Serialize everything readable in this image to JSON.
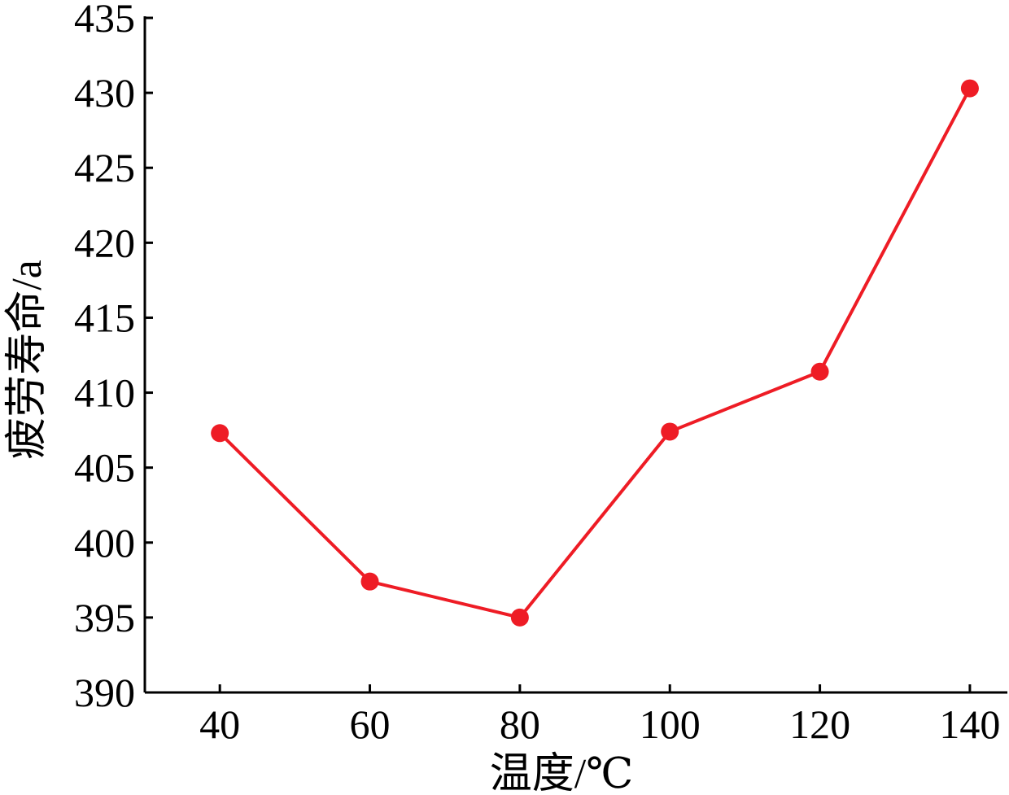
{
  "chart_data": {
    "type": "line",
    "xlabel": "温度/℃",
    "ylabel": "疲劳寿命/a",
    "x": [
      40,
      60,
      80,
      100,
      120,
      140
    ],
    "series": [
      {
        "values": [
          407.3,
          397.4,
          395.0,
          407.4,
          411.4,
          430.3
        ],
        "color": "#ee1c25"
      }
    ],
    "xlim": [
      30,
      145
    ],
    "ylim": [
      390,
      435
    ],
    "xticks": [
      "40",
      "60",
      "80",
      "100",
      "120",
      "140"
    ],
    "yticks": [
      "390",
      "395",
      "400",
      "405",
      "410",
      "415",
      "420",
      "425",
      "430",
      "435"
    ],
    "grid": false,
    "legend": "none"
  }
}
